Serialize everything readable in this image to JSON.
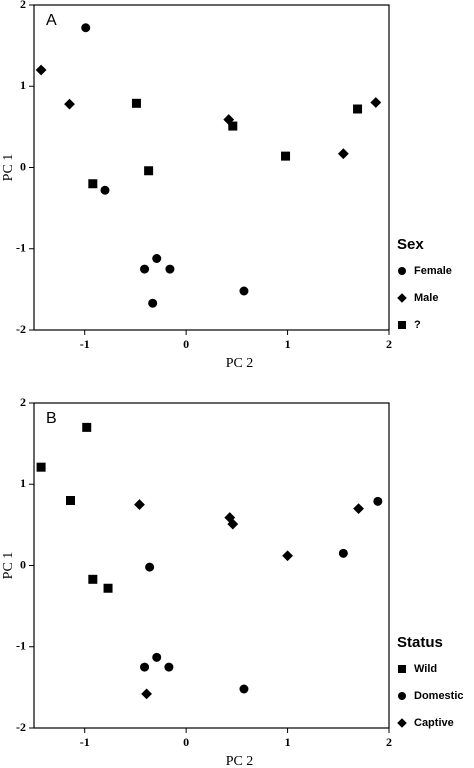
{
  "chart_data": [
    {
      "type": "scatter",
      "panel": "A",
      "xlabel": "PC 2",
      "ylabel": "PC 1",
      "legend_title": "Sex",
      "xlim": [
        -1.5,
        2
      ],
      "ylim": [
        -2,
        2
      ],
      "xticks": [
        -1,
        0,
        1,
        2
      ],
      "yticks": [
        -2,
        -1,
        0,
        1,
        2
      ],
      "series": [
        {
          "name": "Female",
          "color": "#000000",
          "marker": "circle",
          "x": [
            -0.99,
            -0.8,
            -0.41,
            -0.29,
            -0.16,
            -0.33,
            0.57
          ],
          "y": [
            1.72,
            -0.28,
            -1.25,
            -1.12,
            -1.25,
            -1.67,
            -1.52
          ]
        },
        {
          "name": "Male",
          "color": "#000000",
          "marker": "diamond",
          "x": [
            -1.43,
            -1.15,
            0.42,
            1.55,
            1.87
          ],
          "y": [
            1.2,
            0.78,
            0.59,
            0.17,
            0.8
          ]
        },
        {
          "name": "?",
          "color": "#000000",
          "marker": "square",
          "x": [
            -0.49,
            0.46,
            -0.92,
            -0.37,
            0.98,
            1.69
          ],
          "y": [
            0.79,
            0.51,
            -0.2,
            -0.04,
            0.14,
            0.72
          ]
        }
      ]
    },
    {
      "type": "scatter",
      "panel": "B",
      "xlabel": "PC 2",
      "ylabel": "PC 1",
      "legend_title": "Status",
      "xlim": [
        -1.5,
        2
      ],
      "ylim": [
        -2,
        2
      ],
      "xticks": [
        -1,
        0,
        1,
        2
      ],
      "yticks": [
        -2,
        -1,
        0,
        1,
        2
      ],
      "series": [
        {
          "name": "Wild",
          "color": "#000000",
          "marker": "square",
          "x": [
            -1.43,
            -0.98,
            -1.14,
            -0.92,
            -0.77
          ],
          "y": [
            1.21,
            1.7,
            0.8,
            -0.17,
            -0.28
          ]
        },
        {
          "name": "Domestic",
          "color": "#000000",
          "marker": "circle",
          "x": [
            -0.36,
            -0.41,
            -0.29,
            -0.17,
            0.57,
            1.55,
            1.89
          ],
          "y": [
            -0.02,
            -1.25,
            -1.13,
            -1.25,
            -1.52,
            0.15,
            0.79
          ]
        },
        {
          "name": "Captive",
          "color": "#000000",
          "marker": "diamond",
          "x": [
            -0.46,
            0.43,
            0.46,
            1.0,
            1.7,
            -0.39
          ],
          "y": [
            0.75,
            0.59,
            0.51,
            0.12,
            0.7,
            -1.58
          ]
        }
      ]
    }
  ]
}
